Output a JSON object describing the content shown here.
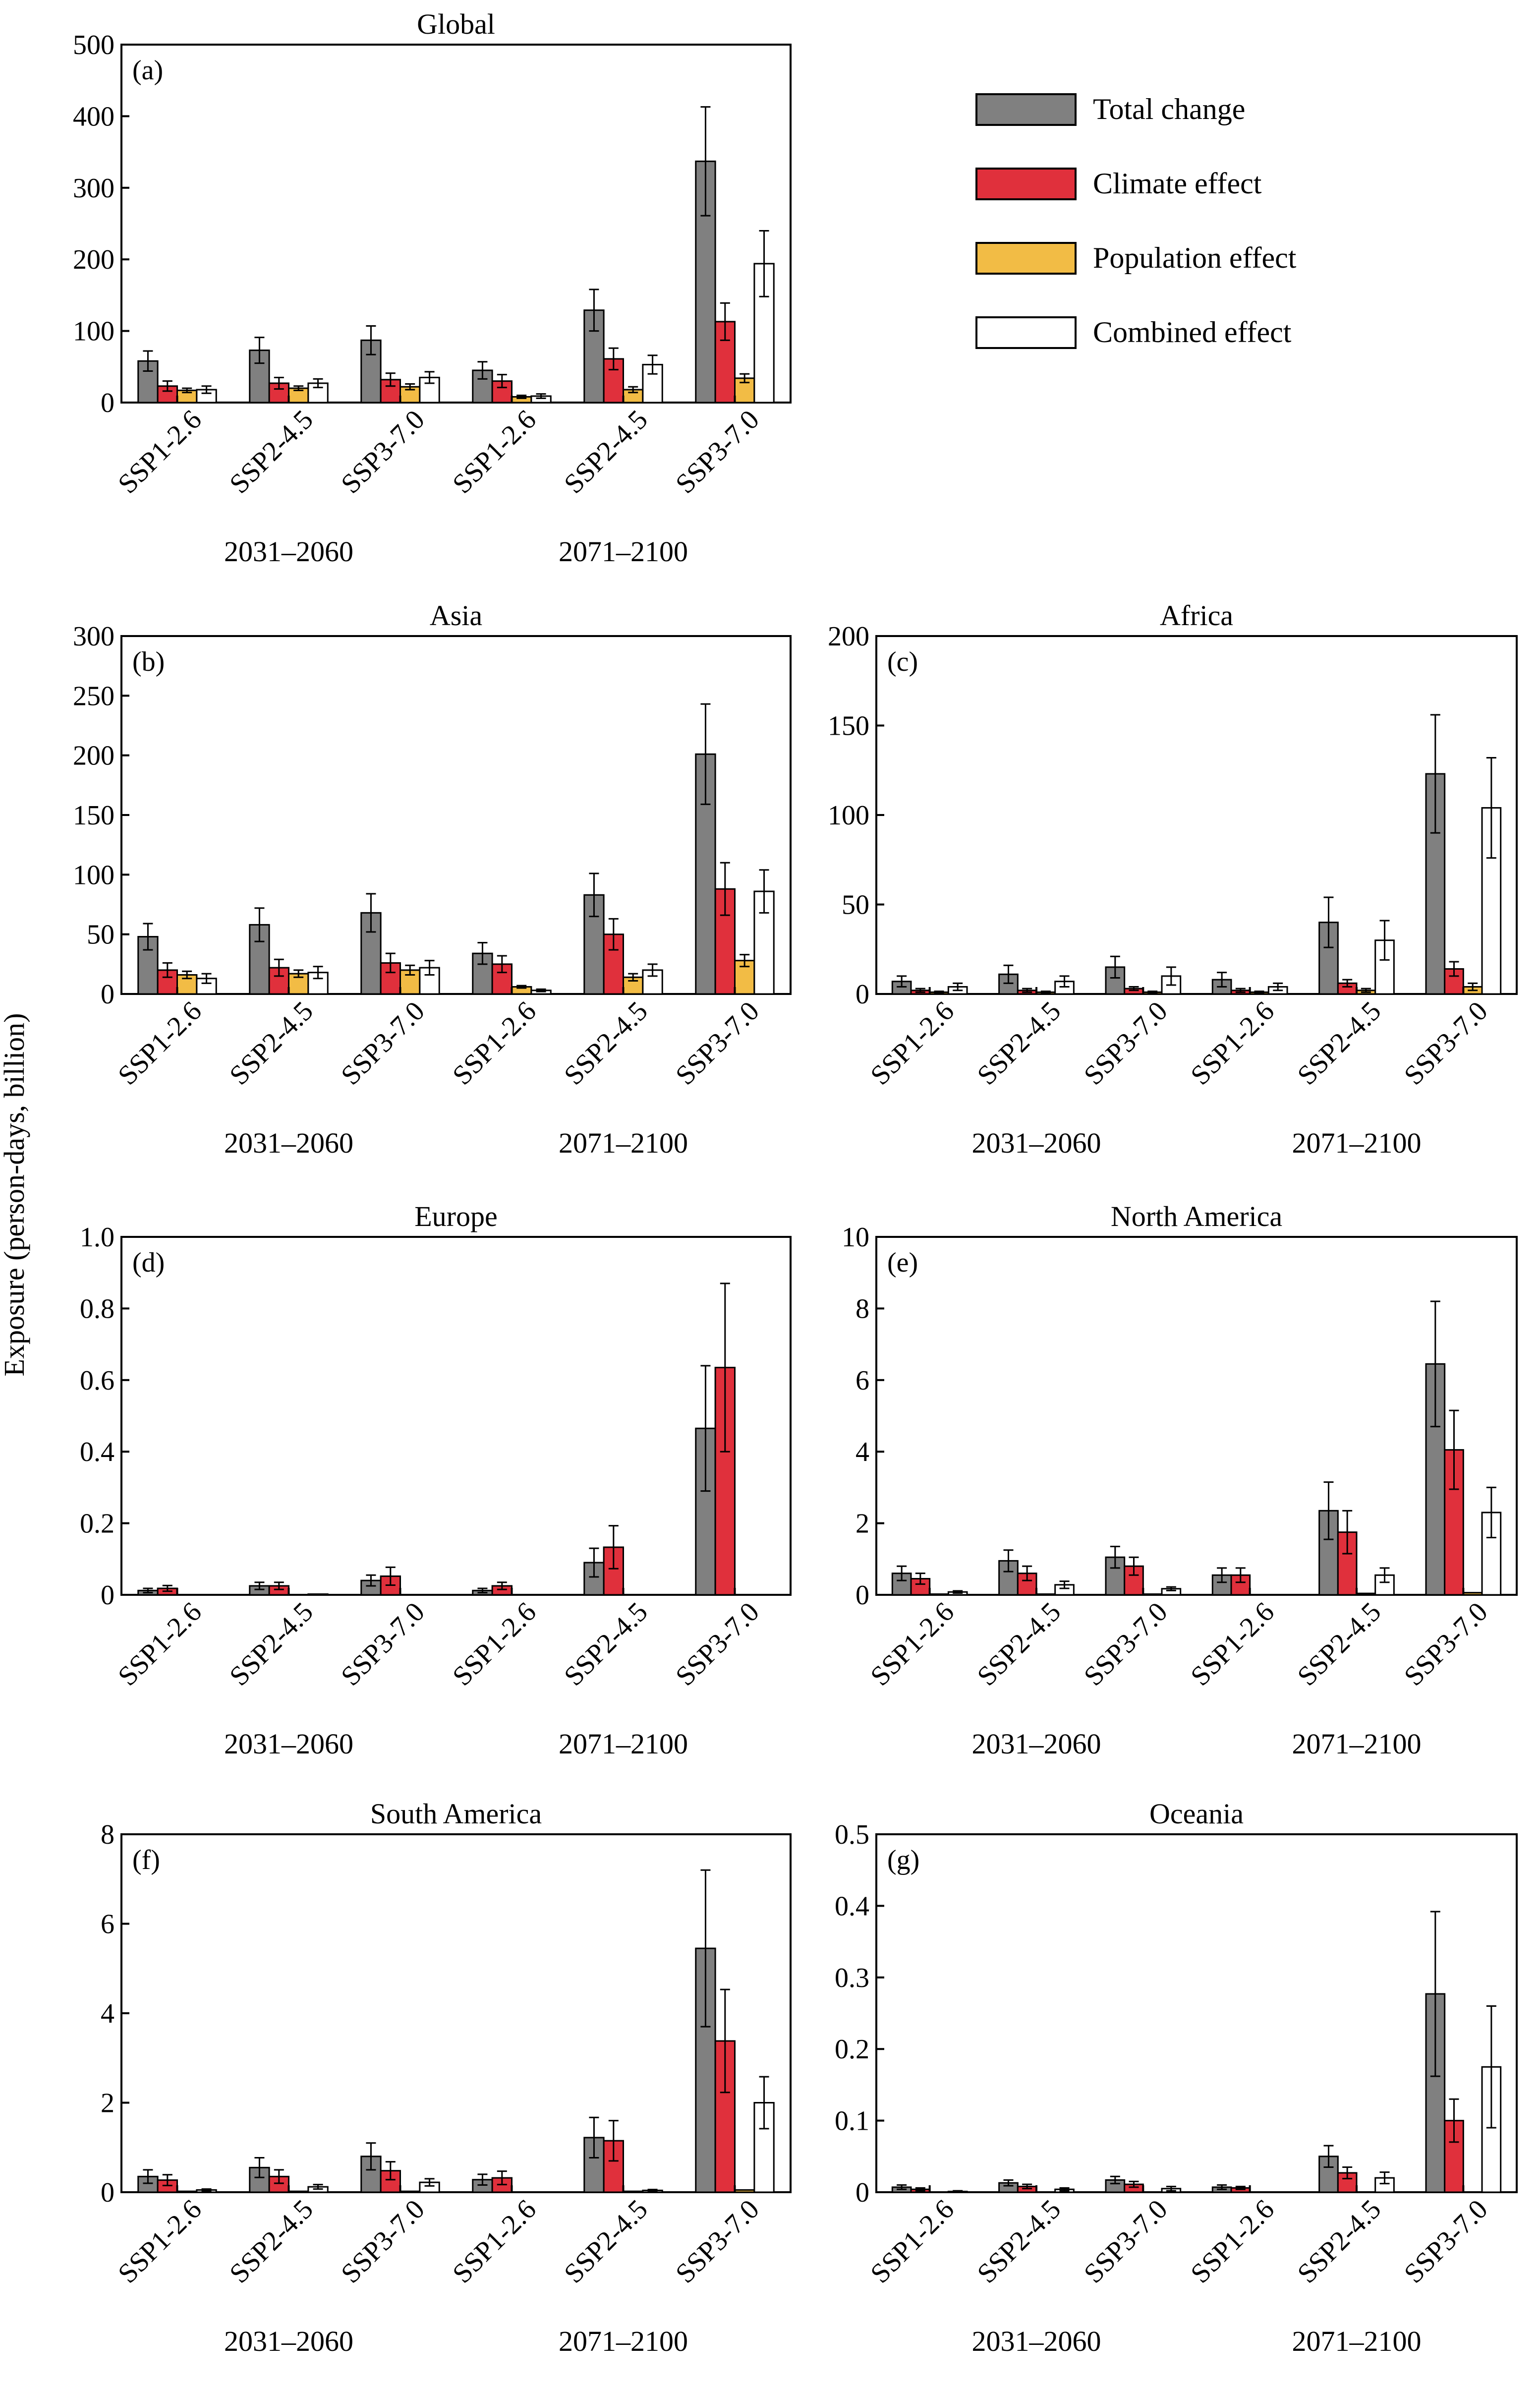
{
  "y_axis_label": "Exposure (person-days, billion)",
  "legend": [
    {
      "label": "Total change",
      "color": "#808080"
    },
    {
      "label": "Climate effect",
      "color": "#e0303c"
    },
    {
      "label": "Population effect",
      "color": "#f2bc45"
    },
    {
      "label": "Combined effect",
      "color": "#ffffff"
    }
  ],
  "chart_data": [
    {
      "type": "bar",
      "panel": "(a)",
      "title": "Global",
      "categories": [
        "SSP1-2.6",
        "SSP2-4.5",
        "SSP3-7.0",
        "SSP1-2.6",
        "SSP2-4.5",
        "SSP3-7.0"
      ],
      "periods": [
        "2031–2060",
        "2071–2100"
      ],
      "ylim": [
        0,
        500
      ],
      "yticks": [
        "0",
        "100",
        "200",
        "300",
        "400",
        "500"
      ],
      "series": [
        {
          "name": "Total change",
          "values": [
            58,
            73,
            87,
            45,
            129,
            337
          ],
          "err": [
            14,
            18,
            20,
            12,
            29,
            76
          ]
        },
        {
          "name": "Climate effect",
          "values": [
            23,
            27,
            32,
            30,
            61,
            113
          ],
          "err": [
            7,
            8,
            9,
            9,
            15,
            26
          ]
        },
        {
          "name": "Population effect",
          "values": [
            17,
            20,
            22,
            8,
            18,
            34
          ],
          "err": [
            3,
            3,
            4,
            2,
            4,
            6
          ]
        },
        {
          "name": "Combined effect",
          "values": [
            18,
            27,
            35,
            9,
            53,
            194
          ],
          "err": [
            5,
            6,
            8,
            3,
            13,
            46
          ]
        }
      ]
    },
    {
      "type": "bar",
      "panel": "(b)",
      "title": "Asia",
      "categories": [
        "SSP1-2.6",
        "SSP2-4.5",
        "SSP3-7.0",
        "SSP1-2.6",
        "SSP2-4.5",
        "SSP3-7.0"
      ],
      "periods": [
        "2031–2060",
        "2071–2100"
      ],
      "ylim": [
        0,
        300
      ],
      "yticks": [
        "0",
        "50",
        "100",
        "150",
        "200",
        "250",
        "300"
      ],
      "series": [
        {
          "name": "Total change",
          "values": [
            48,
            58,
            68,
            34,
            83,
            201
          ],
          "err": [
            11,
            14,
            16,
            9,
            18,
            42
          ]
        },
        {
          "name": "Climate effect",
          "values": [
            20,
            22,
            26,
            25,
            50,
            88
          ],
          "err": [
            6,
            7,
            8,
            7,
            13,
            22
          ]
        },
        {
          "name": "Population effect",
          "values": [
            16,
            17,
            20,
            6,
            14,
            28
          ],
          "err": [
            3,
            3,
            4,
            1,
            3,
            5
          ]
        },
        {
          "name": "Combined effect",
          "values": [
            13,
            18,
            22,
            3,
            20,
            86
          ],
          "err": [
            4,
            5,
            6,
            1,
            5,
            18
          ]
        }
      ]
    },
    {
      "type": "bar",
      "panel": "(c)",
      "title": "Africa",
      "categories": [
        "SSP1-2.6",
        "SSP2-4.5",
        "SSP3-7.0",
        "SSP1-2.6",
        "SSP2-4.5",
        "SSP3-7.0"
      ],
      "periods": [
        "2031–2060",
        "2071–2100"
      ],
      "ylim": [
        0,
        200
      ],
      "yticks": [
        "0",
        "50",
        "100",
        "150",
        "200"
      ],
      "series": [
        {
          "name": "Total change",
          "values": [
            7,
            11,
            15,
            8,
            40,
            123
          ],
          "err": [
            3,
            5,
            6,
            4,
            14,
            33
          ]
        },
        {
          "name": "Climate effect",
          "values": [
            2,
            2,
            3,
            2,
            6,
            14
          ],
          "err": [
            1,
            1,
            1,
            1,
            2,
            4
          ]
        },
        {
          "name": "Population effect",
          "values": [
            1,
            1,
            1,
            1,
            2,
            4
          ],
          "err": [
            0.5,
            0.5,
            0.5,
            0.5,
            1,
            2
          ]
        },
        {
          "name": "Combined effect",
          "values": [
            4,
            7,
            10,
            4,
            30,
            104
          ],
          "err": [
            2,
            3,
            5,
            2,
            11,
            28
          ]
        }
      ]
    },
    {
      "type": "bar",
      "panel": "(d)",
      "title": "Europe",
      "categories": [
        "SSP1-2.6",
        "SSP2-4.5",
        "SSP3-7.0",
        "SSP1-2.6",
        "SSP2-4.5",
        "SSP3-7.0"
      ],
      "periods": [
        "2031–2060",
        "2071–2100"
      ],
      "ylim": [
        0,
        1.0
      ],
      "yticks": [
        "0",
        "0.2",
        "0.4",
        "0.6",
        "0.8",
        "1.0"
      ],
      "series": [
        {
          "name": "Total change",
          "values": [
            0.012,
            0.025,
            0.04,
            0.012,
            0.09,
            0.465
          ],
          "err": [
            0.006,
            0.01,
            0.015,
            0.006,
            0.04,
            0.175
          ]
        },
        {
          "name": "Climate effect",
          "values": [
            0.018,
            0.025,
            0.052,
            0.025,
            0.133,
            0.635
          ],
          "err": [
            0.008,
            0.01,
            0.025,
            0.01,
            0.06,
            0.235
          ]
        },
        {
          "name": "Population effect",
          "values": [
            0,
            0,
            0,
            0,
            0,
            0
          ],
          "err": [
            0,
            0,
            0,
            0,
            0,
            0
          ]
        },
        {
          "name": "Combined effect",
          "values": [
            0,
            0.002,
            0,
            0,
            0,
            0
          ],
          "err": [
            0,
            0,
            0,
            0,
            0,
            0
          ]
        }
      ]
    },
    {
      "type": "bar",
      "panel": "(e)",
      "title": "North America",
      "categories": [
        "SSP1-2.6",
        "SSP2-4.5",
        "SSP3-7.0",
        "SSP1-2.6",
        "SSP2-4.5",
        "SSP3-7.0"
      ],
      "periods": [
        "2031–2060",
        "2071–2100"
      ],
      "ylim": [
        0,
        10
      ],
      "yticks": [
        "0",
        "2",
        "4",
        "6",
        "8",
        "10"
      ],
      "series": [
        {
          "name": "Total change",
          "values": [
            0.6,
            0.95,
            1.05,
            0.55,
            2.35,
            6.45
          ],
          "err": [
            0.2,
            0.3,
            0.3,
            0.2,
            0.8,
            1.75
          ]
        },
        {
          "name": "Climate effect",
          "values": [
            0.45,
            0.6,
            0.8,
            0.55,
            1.75,
            4.05
          ],
          "err": [
            0.15,
            0.2,
            0.25,
            0.2,
            0.6,
            1.1
          ]
        },
        {
          "name": "Population effect",
          "values": [
            0.02,
            0.02,
            0.02,
            0,
            0.04,
            0.06
          ],
          "err": [
            0,
            0,
            0,
            0,
            0,
            0
          ]
        },
        {
          "name": "Combined effect",
          "values": [
            0.08,
            0.28,
            0.17,
            0,
            0.55,
            2.3
          ],
          "err": [
            0.03,
            0.1,
            0.05,
            0,
            0.2,
            0.7
          ]
        }
      ]
    },
    {
      "type": "bar",
      "panel": "(f)",
      "title": "South America",
      "categories": [
        "SSP1-2.6",
        "SSP2-4.5",
        "SSP3-7.0",
        "SSP1-2.6",
        "SSP2-4.5",
        "SSP3-7.0"
      ],
      "periods": [
        "2031–2060",
        "2071–2100"
      ],
      "ylim": [
        0,
        8
      ],
      "yticks": [
        "0",
        "2",
        "4",
        "6",
        "8"
      ],
      "series": [
        {
          "name": "Total change",
          "values": [
            0.35,
            0.55,
            0.8,
            0.28,
            1.22,
            5.45
          ],
          "err": [
            0.15,
            0.22,
            0.3,
            0.12,
            0.45,
            1.75
          ]
        },
        {
          "name": "Climate effect",
          "values": [
            0.27,
            0.35,
            0.48,
            0.32,
            1.15,
            3.38
          ],
          "err": [
            0.12,
            0.15,
            0.2,
            0.15,
            0.45,
            1.15
          ]
        },
        {
          "name": "Population effect",
          "values": [
            0.02,
            0.02,
            0.02,
            0,
            0.02,
            0.05
          ],
          "err": [
            0,
            0,
            0,
            0,
            0,
            0
          ]
        },
        {
          "name": "Combined effect",
          "values": [
            0.05,
            0.12,
            0.22,
            0,
            0.04,
            2.0
          ],
          "err": [
            0.02,
            0.05,
            0.08,
            0,
            0.02,
            0.58
          ]
        }
      ]
    },
    {
      "type": "bar",
      "panel": "(g)",
      "title": "Oceania",
      "categories": [
        "SSP1-2.6",
        "SSP2-4.5",
        "SSP3-7.0",
        "SSP1-2.6",
        "SSP2-4.5",
        "SSP3-7.0"
      ],
      "periods": [
        "2031–2060",
        "2071–2100"
      ],
      "ylim": [
        0,
        0.5
      ],
      "yticks": [
        "0",
        "0.1",
        "0.2",
        "0.3",
        "0.4",
        "0.5"
      ],
      "series": [
        {
          "name": "Total change",
          "values": [
            0.007,
            0.013,
            0.017,
            0.007,
            0.05,
            0.277
          ],
          "err": [
            0.003,
            0.004,
            0.005,
            0.003,
            0.015,
            0.115
          ]
        },
        {
          "name": "Climate effect",
          "values": [
            0.004,
            0.008,
            0.011,
            0.006,
            0.027,
            0.1
          ],
          "err": [
            0.002,
            0.003,
            0.004,
            0.002,
            0.008,
            0.03
          ]
        },
        {
          "name": "Population effect",
          "values": [
            0,
            0,
            0,
            0,
            0,
            0
          ],
          "err": [
            0,
            0,
            0,
            0,
            0,
            0
          ]
        },
        {
          "name": "Combined effect",
          "values": [
            0.001,
            0.004,
            0.005,
            0,
            0.02,
            0.175
          ],
          "err": [
            0.001,
            0.002,
            0.003,
            0,
            0.008,
            0.085
          ]
        }
      ]
    }
  ]
}
